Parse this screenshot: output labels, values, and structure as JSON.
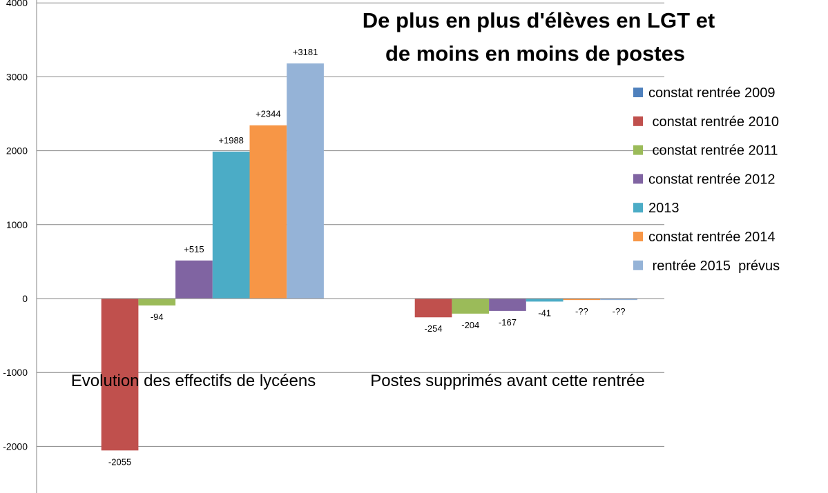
{
  "chart_data": {
    "type": "bar",
    "title_lines": [
      "De plus en plus d'élèves en LGT et",
      "de moins en moins de postes"
    ],
    "categories": [
      "Evolution des effectifs de lycéens",
      "Postes supprimés avant cette rentrée"
    ],
    "series": [
      {
        "name": "constat rentrée 2009",
        "color": "#4F81BD",
        "values": [
          0,
          0
        ],
        "labels": [
          "",
          ""
        ]
      },
      {
        "name": " constat rentrée 2010",
        "color": "#C0504D",
        "values": [
          -2055,
          -254
        ],
        "labels": [
          "-2055",
          "-254"
        ]
      },
      {
        "name": " constat rentrée 2011",
        "color": "#9BBB59",
        "values": [
          -94,
          -204
        ],
        "labels": [
          "-94",
          "-204"
        ]
      },
      {
        "name": "constat rentrée 2012",
        "color": "#8064A2",
        "values": [
          515,
          -167
        ],
        "labels": [
          "+515",
          "-167"
        ]
      },
      {
        "name": "2013",
        "color": "#4BACC6",
        "values": [
          1988,
          -41
        ],
        "labels": [
          "+1988",
          "-41"
        ]
      },
      {
        "name": "constat rentrée 2014",
        "color": "#F79646",
        "values": [
          2344,
          -20
        ],
        "labels": [
          "+2344",
          "-??"
        ]
      },
      {
        "name": " rentrée 2015  prévus",
        "color": "#95B3D7",
        "values": [
          3181,
          -20
        ],
        "labels": [
          "+3181",
          "-??"
        ]
      }
    ],
    "yticks": [
      "4000",
      "3000",
      "2000",
      "1000",
      "0",
      "-1000",
      "-2000"
    ],
    "ylim": [
      -2350,
      4000
    ],
    "grid": true,
    "legend_position": "right"
  }
}
